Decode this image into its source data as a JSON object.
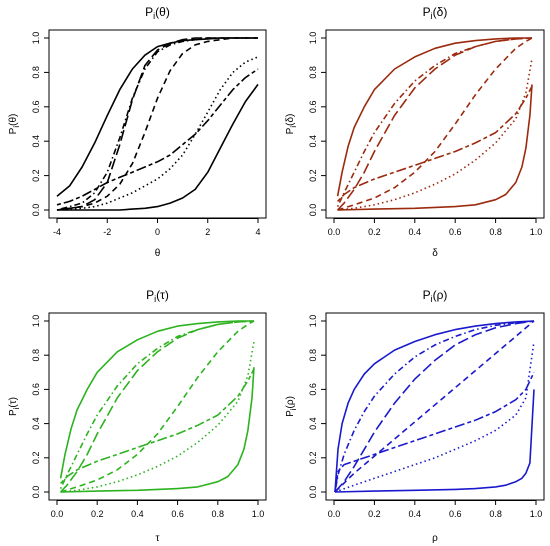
{
  "chart_data": [
    {
      "type": "line",
      "title": "P_i(θ)",
      "title_main": "P",
      "title_sub": "i",
      "title_arg": "(θ)",
      "xlabel": "θ",
      "ylabel": "P_i(θ)",
      "ylabel_main": "P",
      "ylabel_sub": "i",
      "ylabel_arg": "(θ)",
      "color": "#000000",
      "xlim": [
        -4,
        4
      ],
      "ylim": [
        0,
        1
      ],
      "xticks": [
        -4,
        -2,
        0,
        2,
        4
      ],
      "yticks": [
        0.0,
        0.2,
        0.4,
        0.6,
        0.8,
        1.0
      ],
      "series": [
        {
          "dash": "solid",
          "x": [
            -4,
            -3.5,
            -3,
            -2.5,
            -2,
            -1.5,
            -1,
            -0.5,
            0,
            0.5,
            1,
            1.5,
            2,
            2.5,
            3,
            3.5,
            4
          ],
          "y": [
            0.08,
            0.14,
            0.25,
            0.39,
            0.55,
            0.7,
            0.82,
            0.9,
            0.95,
            0.97,
            0.985,
            0.99,
            0.995,
            1.0,
            1.0,
            1.0,
            1.0
          ]
        },
        {
          "dash": "longdash",
          "x": [
            -4,
            -3.5,
            -3,
            -2.5,
            -2,
            -1.5,
            -1,
            -0.5,
            0,
            0.5,
            1,
            1.5,
            2,
            2.5,
            3,
            3.5,
            4
          ],
          "y": [
            0.0,
            0.01,
            0.02,
            0.06,
            0.16,
            0.38,
            0.64,
            0.84,
            0.93,
            0.97,
            0.99,
            1.0,
            1.0,
            1.0,
            1.0,
            1.0,
            1.0
          ]
        },
        {
          "dash": "dotdash",
          "x": [
            -4,
            -3.5,
            -3,
            -2.5,
            -2,
            -1.5,
            -1,
            -0.5,
            0,
            0.5,
            1,
            1.5,
            2,
            2.5,
            3,
            3.5,
            4
          ],
          "y": [
            0.0,
            0.02,
            0.04,
            0.1,
            0.22,
            0.42,
            0.65,
            0.82,
            0.92,
            0.96,
            0.98,
            0.99,
            1.0,
            1.0,
            1.0,
            1.0,
            1.0
          ]
        },
        {
          "dash": "dashed",
          "x": [
            -4,
            -3.5,
            -3,
            -2.5,
            -2,
            -1.5,
            -1,
            -0.5,
            0,
            0.5,
            1,
            1.5,
            2,
            2.5,
            3,
            3.5,
            4
          ],
          "y": [
            0.0,
            0.01,
            0.02,
            0.04,
            0.08,
            0.15,
            0.27,
            0.45,
            0.65,
            0.81,
            0.91,
            0.96,
            0.98,
            0.99,
            1.0,
            1.0,
            1.0
          ]
        },
        {
          "dash": "twodash",
          "x": [
            -4,
            -3.5,
            -3,
            -2.5,
            -2,
            -1.5,
            -1,
            -0.5,
            0,
            0.5,
            1,
            1.5,
            2,
            2.5,
            3,
            3.5,
            4
          ],
          "y": [
            0.03,
            0.05,
            0.08,
            0.12,
            0.16,
            0.19,
            0.22,
            0.25,
            0.28,
            0.32,
            0.38,
            0.44,
            0.52,
            0.61,
            0.7,
            0.77,
            0.82
          ]
        },
        {
          "dash": "dotted",
          "x": [
            -4,
            -3.5,
            -3,
            -2.5,
            -2,
            -1.5,
            -1,
            -0.5,
            0,
            0.5,
            1,
            1.5,
            2,
            2.5,
            3,
            3.5,
            4
          ],
          "y": [
            0.0,
            0.005,
            0.01,
            0.02,
            0.04,
            0.07,
            0.1,
            0.14,
            0.18,
            0.24,
            0.32,
            0.44,
            0.57,
            0.7,
            0.8,
            0.86,
            0.89
          ]
        },
        {
          "dash": "solid",
          "x": [
            -4,
            -3.5,
            -3,
            -2.5,
            -2,
            -1.5,
            -1,
            -0.5,
            0,
            0.5,
            1,
            1.5,
            2,
            2.5,
            3,
            3.5,
            4
          ],
          "y": [
            0.0,
            0.0,
            0.0,
            0.0,
            0.0,
            0.0,
            0.005,
            0.01,
            0.02,
            0.04,
            0.07,
            0.12,
            0.22,
            0.36,
            0.5,
            0.63,
            0.73
          ]
        }
      ]
    },
    {
      "type": "line",
      "title": "P_i(δ)",
      "title_main": "P",
      "title_sub": "i",
      "title_arg": "(δ)",
      "xlabel": "δ",
      "ylabel": "P_i(δ)",
      "ylabel_main": "P",
      "ylabel_sub": "i",
      "ylabel_arg": "(δ)",
      "color": "#9b2a0e",
      "xlim": [
        0,
        1
      ],
      "ylim": [
        0,
        1
      ],
      "xticks": [
        0.0,
        0.2,
        0.4,
        0.6,
        0.8,
        1.0
      ],
      "yticks": [
        0.0,
        0.2,
        0.4,
        0.6,
        0.8,
        1.0
      ],
      "series": [
        {
          "dash": "solid",
          "x": [
            0.018,
            0.04,
            0.07,
            0.1,
            0.15,
            0.2,
            0.3,
            0.4,
            0.5,
            0.6,
            0.7,
            0.8,
            0.9,
            0.98
          ],
          "y": [
            0.08,
            0.22,
            0.37,
            0.48,
            0.6,
            0.7,
            0.82,
            0.89,
            0.94,
            0.97,
            0.985,
            0.995,
            1.0,
            1.0
          ]
        },
        {
          "dash": "longdash",
          "x": [
            0.018,
            0.05,
            0.1,
            0.15,
            0.2,
            0.3,
            0.4,
            0.5,
            0.6,
            0.7,
            0.8,
            0.9,
            0.98
          ],
          "y": [
            0.0,
            0.04,
            0.12,
            0.22,
            0.34,
            0.55,
            0.71,
            0.82,
            0.9,
            0.95,
            0.98,
            0.995,
            1.0
          ]
        },
        {
          "dash": "dotdash",
          "x": [
            0.018,
            0.05,
            0.1,
            0.15,
            0.2,
            0.3,
            0.4,
            0.5,
            0.6,
            0.7,
            0.8,
            0.9,
            0.98
          ],
          "y": [
            0.02,
            0.1,
            0.22,
            0.34,
            0.45,
            0.62,
            0.75,
            0.84,
            0.91,
            0.95,
            0.98,
            0.995,
            1.0
          ]
        },
        {
          "dash": "dashed",
          "x": [
            0.018,
            0.1,
            0.2,
            0.3,
            0.4,
            0.5,
            0.6,
            0.7,
            0.8,
            0.9,
            0.95,
            0.98
          ],
          "y": [
            0.0,
            0.03,
            0.07,
            0.13,
            0.22,
            0.34,
            0.5,
            0.67,
            0.82,
            0.94,
            0.98,
            1.0
          ]
        },
        {
          "dash": "twodash",
          "x": [
            0.018,
            0.05,
            0.1,
            0.2,
            0.3,
            0.4,
            0.5,
            0.6,
            0.7,
            0.8,
            0.9,
            0.95,
            0.98
          ],
          "y": [
            0.05,
            0.09,
            0.13,
            0.18,
            0.22,
            0.26,
            0.3,
            0.34,
            0.39,
            0.45,
            0.56,
            0.65,
            0.72
          ]
        },
        {
          "dash": "dotted",
          "x": [
            0.018,
            0.1,
            0.2,
            0.3,
            0.4,
            0.5,
            0.6,
            0.7,
            0.8,
            0.9,
            0.95,
            0.98
          ],
          "y": [
            0.0,
            0.01,
            0.03,
            0.06,
            0.1,
            0.15,
            0.21,
            0.29,
            0.39,
            0.53,
            0.68,
            0.88
          ]
        },
        {
          "dash": "solid",
          "x": [
            0.018,
            0.2,
            0.4,
            0.6,
            0.7,
            0.8,
            0.85,
            0.9,
            0.93,
            0.95,
            0.97,
            0.98
          ],
          "y": [
            0.0,
            0.005,
            0.01,
            0.02,
            0.03,
            0.06,
            0.09,
            0.16,
            0.25,
            0.36,
            0.55,
            0.73
          ]
        }
      ]
    },
    {
      "type": "line",
      "title": "P_i(τ)",
      "title_main": "P",
      "title_sub": "i",
      "title_arg": "(τ)",
      "xlabel": "τ",
      "ylabel": "P_i(τ)",
      "ylabel_main": "P",
      "ylabel_sub": "i",
      "ylabel_arg": "(τ)",
      "color": "#2db31f",
      "xlim": [
        0,
        1
      ],
      "ylim": [
        0,
        1
      ],
      "xticks": [
        0.0,
        0.2,
        0.4,
        0.6,
        0.8,
        1.0
      ],
      "yticks": [
        0.0,
        0.2,
        0.4,
        0.6,
        0.8,
        1.0
      ],
      "series": [
        {
          "dash": "solid",
          "x": [
            0.018,
            0.04,
            0.07,
            0.1,
            0.15,
            0.2,
            0.3,
            0.4,
            0.5,
            0.6,
            0.7,
            0.8,
            0.9,
            0.98
          ],
          "y": [
            0.08,
            0.22,
            0.37,
            0.48,
            0.6,
            0.7,
            0.82,
            0.89,
            0.94,
            0.97,
            0.985,
            0.995,
            1.0,
            1.0
          ]
        },
        {
          "dash": "longdash",
          "x": [
            0.018,
            0.05,
            0.1,
            0.15,
            0.2,
            0.3,
            0.4,
            0.5,
            0.6,
            0.7,
            0.8,
            0.9,
            0.98
          ],
          "y": [
            0.0,
            0.04,
            0.12,
            0.22,
            0.34,
            0.55,
            0.71,
            0.82,
            0.9,
            0.95,
            0.98,
            0.995,
            1.0
          ]
        },
        {
          "dash": "dotdash",
          "x": [
            0.018,
            0.05,
            0.1,
            0.15,
            0.2,
            0.3,
            0.4,
            0.5,
            0.6,
            0.7,
            0.8,
            0.9,
            0.98
          ],
          "y": [
            0.02,
            0.1,
            0.22,
            0.34,
            0.45,
            0.62,
            0.75,
            0.84,
            0.91,
            0.95,
            0.98,
            0.995,
            1.0
          ]
        },
        {
          "dash": "dashed",
          "x": [
            0.018,
            0.1,
            0.2,
            0.3,
            0.4,
            0.5,
            0.6,
            0.7,
            0.8,
            0.9,
            0.95,
            0.98
          ],
          "y": [
            0.0,
            0.03,
            0.07,
            0.13,
            0.22,
            0.34,
            0.5,
            0.67,
            0.82,
            0.94,
            0.98,
            1.0
          ]
        },
        {
          "dash": "twodash",
          "x": [
            0.018,
            0.05,
            0.1,
            0.2,
            0.3,
            0.4,
            0.5,
            0.6,
            0.7,
            0.8,
            0.9,
            0.95,
            0.98
          ],
          "y": [
            0.05,
            0.09,
            0.13,
            0.18,
            0.22,
            0.26,
            0.3,
            0.34,
            0.39,
            0.45,
            0.56,
            0.65,
            0.72
          ]
        },
        {
          "dash": "dotted",
          "x": [
            0.018,
            0.1,
            0.2,
            0.3,
            0.4,
            0.5,
            0.6,
            0.7,
            0.8,
            0.9,
            0.95,
            0.98
          ],
          "y": [
            0.0,
            0.01,
            0.03,
            0.06,
            0.1,
            0.15,
            0.21,
            0.29,
            0.39,
            0.53,
            0.68,
            0.88
          ]
        },
        {
          "dash": "solid",
          "x": [
            0.018,
            0.2,
            0.4,
            0.6,
            0.7,
            0.8,
            0.85,
            0.9,
            0.93,
            0.95,
            0.97,
            0.98
          ],
          "y": [
            0.0,
            0.005,
            0.01,
            0.02,
            0.03,
            0.06,
            0.09,
            0.16,
            0.25,
            0.36,
            0.55,
            0.73
          ]
        }
      ]
    },
    {
      "type": "line",
      "title": "P_i(ρ)",
      "title_main": "P",
      "title_sub": "i",
      "title_arg": "(ρ)",
      "xlabel": "ρ",
      "ylabel": "P_i(ρ)",
      "ylabel_main": "P",
      "ylabel_sub": "i",
      "ylabel_arg": "(ρ)",
      "color": "#1a1acc",
      "xlim": [
        0,
        1
      ],
      "ylim": [
        0,
        1
      ],
      "xticks": [
        0.0,
        0.2,
        0.4,
        0.6,
        0.8,
        1.0
      ],
      "yticks": [
        0.0,
        0.2,
        0.4,
        0.6,
        0.8,
        1.0
      ],
      "series": [
        {
          "dash": "solid",
          "x": [
            0.005,
            0.02,
            0.04,
            0.07,
            0.1,
            0.15,
            0.2,
            0.3,
            0.4,
            0.5,
            0.6,
            0.7,
            0.8,
            0.9,
            0.99
          ],
          "y": [
            0.0,
            0.25,
            0.4,
            0.52,
            0.6,
            0.69,
            0.75,
            0.83,
            0.88,
            0.92,
            0.95,
            0.97,
            0.985,
            0.995,
            1.0
          ]
        },
        {
          "dash": "longdash",
          "x": [
            0.005,
            0.05,
            0.1,
            0.15,
            0.2,
            0.3,
            0.4,
            0.5,
            0.6,
            0.7,
            0.8,
            0.9,
            0.99
          ],
          "y": [
            0.0,
            0.06,
            0.15,
            0.25,
            0.35,
            0.52,
            0.66,
            0.77,
            0.86,
            0.92,
            0.96,
            0.985,
            1.0
          ]
        },
        {
          "dash": "dotdash",
          "x": [
            0.005,
            0.02,
            0.05,
            0.1,
            0.15,
            0.2,
            0.3,
            0.4,
            0.5,
            0.6,
            0.7,
            0.8,
            0.9,
            0.99
          ],
          "y": [
            0.0,
            0.1,
            0.22,
            0.36,
            0.47,
            0.56,
            0.69,
            0.79,
            0.86,
            0.91,
            0.95,
            0.975,
            0.99,
            1.0
          ]
        },
        {
          "dash": "dashed",
          "x": [
            0.005,
            0.1,
            0.2,
            0.3,
            0.4,
            0.5,
            0.6,
            0.7,
            0.8,
            0.9,
            0.99
          ],
          "y": [
            0.0,
            0.11,
            0.21,
            0.31,
            0.41,
            0.51,
            0.61,
            0.71,
            0.81,
            0.91,
            1.0
          ]
        },
        {
          "dash": "twodash",
          "x": [
            0.005,
            0.02,
            0.05,
            0.1,
            0.2,
            0.3,
            0.4,
            0.5,
            0.6,
            0.7,
            0.8,
            0.9,
            0.95,
            0.99
          ],
          "y": [
            0.0,
            0.12,
            0.16,
            0.18,
            0.22,
            0.26,
            0.3,
            0.34,
            0.38,
            0.42,
            0.47,
            0.54,
            0.6,
            0.7
          ]
        },
        {
          "dash": "dotted",
          "x": [
            0.005,
            0.1,
            0.2,
            0.3,
            0.4,
            0.5,
            0.6,
            0.7,
            0.8,
            0.9,
            0.95,
            0.99
          ],
          "y": [
            0.0,
            0.04,
            0.08,
            0.12,
            0.16,
            0.2,
            0.25,
            0.3,
            0.36,
            0.45,
            0.55,
            0.88
          ]
        },
        {
          "dash": "solid",
          "x": [
            0.005,
            0.2,
            0.4,
            0.6,
            0.7,
            0.8,
            0.85,
            0.9,
            0.93,
            0.95,
            0.97,
            0.99
          ],
          "y": [
            0.0,
            0.005,
            0.01,
            0.015,
            0.02,
            0.03,
            0.04,
            0.06,
            0.08,
            0.11,
            0.17,
            0.6
          ]
        }
      ]
    }
  ]
}
